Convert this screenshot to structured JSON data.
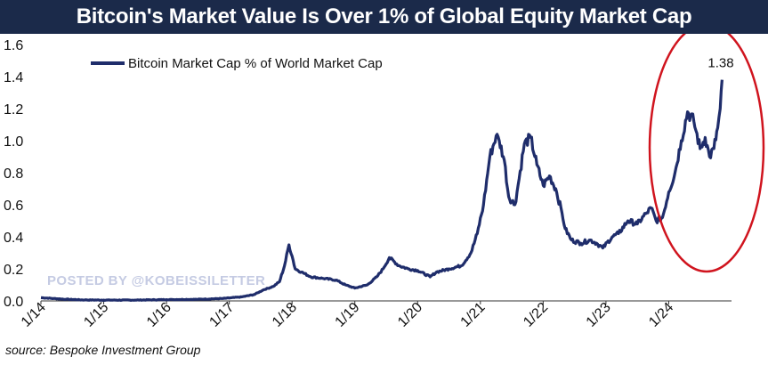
{
  "colors": {
    "title_bg": "#1b2a4a",
    "series": "#1f2d6b",
    "highlight_ellipse": "#d0141e",
    "watermark": "#c5cbe3"
  },
  "watermark": "POSTED BY @KOBEISSILETTER",
  "source": "source: Bespoke Investment Group",
  "chart_data": {
    "type": "line",
    "title": "Bitcoin's Market Value Is Over 1% of Global Equity Market Cap",
    "xlabel": "",
    "ylabel": "",
    "ylim": [
      0,
      1.6
    ],
    "xlim": [
      2014.0,
      2025.0
    ],
    "yticks": [
      0.0,
      0.2,
      0.4,
      0.6,
      0.8,
      1.0,
      1.2,
      1.4,
      1.6
    ],
    "ytick_labels": [
      "0.0",
      "0.2",
      "0.4",
      "0.6",
      "0.8",
      "1.0",
      "1.2",
      "1.4",
      "1.6"
    ],
    "xticks": [
      2014,
      2015,
      2016,
      2017,
      2018,
      2019,
      2020,
      2021,
      2022,
      2023,
      2024
    ],
    "xtick_labels": [
      "1/14",
      "1/15",
      "1/16",
      "1/17",
      "1/18",
      "1/19",
      "1/20",
      "1/21",
      "1/22",
      "1/23",
      "1/24"
    ],
    "grid": false,
    "legend_position": "top-left",
    "annotation": {
      "text": "1.38",
      "x": 2024.85,
      "y": 1.38
    },
    "series": [
      {
        "name": "Bitcoin Market Cap % of World Market Cap",
        "x": [
          2014.0,
          2014.2,
          2014.4,
          2014.7,
          2015.0,
          2015.5,
          2016.0,
          2016.5,
          2016.9,
          2017.2,
          2017.4,
          2017.55,
          2017.7,
          2017.8,
          2017.88,
          2017.95,
          2018.0,
          2018.05,
          2018.15,
          2018.3,
          2018.5,
          2018.7,
          2018.85,
          2019.0,
          2019.2,
          2019.35,
          2019.45,
          2019.55,
          2019.7,
          2019.85,
          2020.0,
          2020.2,
          2020.3,
          2020.5,
          2020.7,
          2020.85,
          2020.95,
          2021.05,
          2021.15,
          2021.25,
          2021.3,
          2021.38,
          2021.45,
          2021.55,
          2021.6,
          2021.7,
          2021.8,
          2021.9,
          2022.0,
          2022.1,
          2022.2,
          2022.3,
          2022.35,
          2022.45,
          2022.6,
          2022.75,
          2022.85,
          2022.95,
          2023.1,
          2023.2,
          2023.35,
          2023.5,
          2023.65,
          2023.72,
          2023.8,
          2023.9,
          2024.0,
          2024.1,
          2024.2,
          2024.3,
          2024.4,
          2024.5,
          2024.58,
          2024.65,
          2024.72,
          2024.78,
          2024.82,
          2024.85
        ],
        "values": [
          0.02,
          0.015,
          0.01,
          0.006,
          0.005,
          0.005,
          0.008,
          0.01,
          0.015,
          0.025,
          0.04,
          0.07,
          0.09,
          0.12,
          0.22,
          0.35,
          0.28,
          0.2,
          0.18,
          0.15,
          0.14,
          0.13,
          0.1,
          0.08,
          0.1,
          0.15,
          0.2,
          0.27,
          0.22,
          0.2,
          0.19,
          0.15,
          0.18,
          0.2,
          0.22,
          0.3,
          0.42,
          0.6,
          0.9,
          1.03,
          1.0,
          0.88,
          0.65,
          0.6,
          0.72,
          0.98,
          1.02,
          0.85,
          0.72,
          0.78,
          0.7,
          0.55,
          0.45,
          0.38,
          0.36,
          0.38,
          0.36,
          0.33,
          0.4,
          0.42,
          0.5,
          0.48,
          0.55,
          0.58,
          0.5,
          0.52,
          0.68,
          0.8,
          1.0,
          1.18,
          1.12,
          0.95,
          1.02,
          0.9,
          0.95,
          1.08,
          1.2,
          1.38
        ]
      }
    ]
  }
}
